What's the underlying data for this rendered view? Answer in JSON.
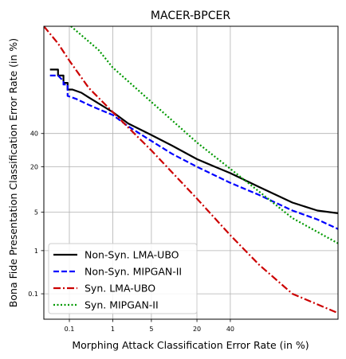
{
  "chart_data": {
    "type": "line",
    "title": "MACER-BPCER",
    "xlabel": "Morphing Attack Classification Error Rate (in %)",
    "ylabel": "Bona Fide Presentation Classification Error Rate (in %)",
    "x_scale": "probit",
    "y_scale": "probit",
    "xlim": [
      0.02,
      95
    ],
    "ylim": [
      0.02,
      95
    ],
    "x_ticks": [
      0.1,
      1,
      5,
      20,
      40
    ],
    "x_tick_labels": [
      "0.1",
      "1",
      "5",
      "20",
      "40"
    ],
    "y_ticks": [
      0.1,
      1,
      5,
      20,
      40
    ],
    "y_tick_labels": [
      "0.1",
      "1",
      "5",
      "20",
      "40"
    ],
    "grid": true,
    "legend_position": "lower-left",
    "series": [
      {
        "name": "Non-Syn. LMA-UBO",
        "color": "#000000",
        "style": "solid",
        "points": [
          [
            0.03,
            81
          ],
          [
            0.05,
            81
          ],
          [
            0.05,
            78
          ],
          [
            0.07,
            78
          ],
          [
            0.07,
            74
          ],
          [
            0.09,
            74
          ],
          [
            0.09,
            70
          ],
          [
            0.12,
            70
          ],
          [
            0.2,
            68
          ],
          [
            0.3,
            65
          ],
          [
            0.5,
            61
          ],
          [
            1,
            55
          ],
          [
            2,
            47
          ],
          [
            5,
            39
          ],
          [
            10,
            32
          ],
          [
            20,
            24
          ],
          [
            30,
            20
          ],
          [
            40,
            17
          ],
          [
            60,
            11.5
          ],
          [
            80,
            7
          ],
          [
            90,
            5.3
          ],
          [
            95,
            4.8
          ]
        ]
      },
      {
        "name": "Non-Syn. MIPGAN-II",
        "color": "#0000ff",
        "style": "dashed",
        "points": [
          [
            0.03,
            78
          ],
          [
            0.05,
            78
          ],
          [
            0.07,
            75
          ],
          [
            0.07,
            73
          ],
          [
            0.09,
            73
          ],
          [
            0.09,
            66
          ],
          [
            0.15,
            64
          ],
          [
            0.3,
            60
          ],
          [
            0.6,
            56
          ],
          [
            1,
            53
          ],
          [
            2,
            45
          ],
          [
            5,
            35
          ],
          [
            10,
            27
          ],
          [
            20,
            20
          ],
          [
            40,
            13
          ],
          [
            60,
            9
          ],
          [
            80,
            5.3
          ],
          [
            90,
            3.8
          ],
          [
            95,
            2.6
          ]
        ]
      },
      {
        "name": "Syn. LMA-UBO",
        "color": "#cc0000",
        "style": "dashdot",
        "points": [
          [
            0.02,
            95
          ],
          [
            0.05,
            91
          ],
          [
            0.1,
            85
          ],
          [
            0.3,
            71
          ],
          [
            1,
            55
          ],
          [
            5,
            29
          ],
          [
            20,
            8
          ],
          [
            40,
            2
          ],
          [
            60,
            0.5
          ],
          [
            80,
            0.1
          ],
          [
            95,
            0.03
          ]
        ]
      },
      {
        "name": "Syn. MIPGAN-II",
        "color": "#009900",
        "style": "dotted",
        "points": [
          [
            0.11,
            95
          ],
          [
            0.5,
            89
          ],
          [
            1,
            82
          ],
          [
            5,
            62
          ],
          [
            20,
            34
          ],
          [
            40,
            19
          ],
          [
            60,
            10
          ],
          [
            80,
            4
          ],
          [
            95,
            1.4
          ]
        ]
      }
    ]
  }
}
